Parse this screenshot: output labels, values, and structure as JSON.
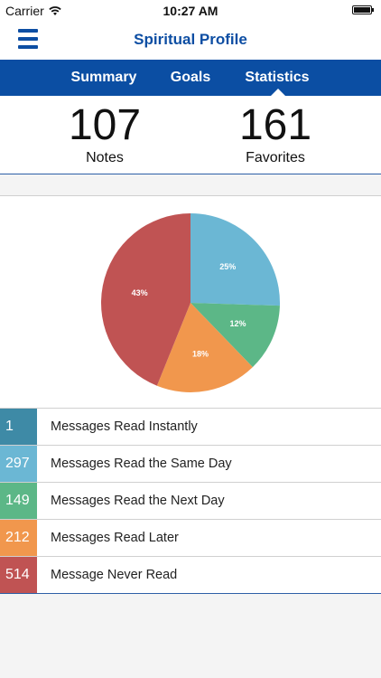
{
  "status_bar": {
    "carrier": "Carrier",
    "time": "10:27 AM"
  },
  "nav": {
    "title": "Spiritual Profile"
  },
  "tabs": [
    {
      "label": "Summary"
    },
    {
      "label": "Goals"
    },
    {
      "label": "Statistics"
    }
  ],
  "stats": {
    "notes": {
      "value": "107",
      "label": "Notes"
    },
    "favorites": {
      "value": "161",
      "label": "Favorites"
    }
  },
  "chart_data": {
    "type": "pie",
    "slices": [
      {
        "label": "Messages Read Instantly",
        "value": 0,
        "display": "",
        "color": "#3e8aa6"
      },
      {
        "label": "Messages Read the Same Day",
        "value": 25,
        "display": "25%",
        "color": "#6bb7d4"
      },
      {
        "label": "Messages Read the Next Day",
        "value": 12,
        "display": "12%",
        "color": "#5cb787"
      },
      {
        "label": "Messages Read Later",
        "value": 18,
        "display": "18%",
        "color": "#f1974d"
      },
      {
        "label": "Message Never Read",
        "value": 43,
        "display": "43%",
        "color": "#c05353"
      }
    ]
  },
  "legend": [
    {
      "count": "1",
      "label": "Messages Read Instantly",
      "color": "#3e8aa6"
    },
    {
      "count": "297",
      "label": "Messages Read the Same Day",
      "color": "#6bb7d4"
    },
    {
      "count": "149",
      "label": "Messages Read the Next Day",
      "color": "#5cb787"
    },
    {
      "count": "212",
      "label": "Messages Read Later",
      "color": "#f1974d"
    },
    {
      "count": "514",
      "label": "Message Never Read",
      "color": "#c05353"
    }
  ]
}
